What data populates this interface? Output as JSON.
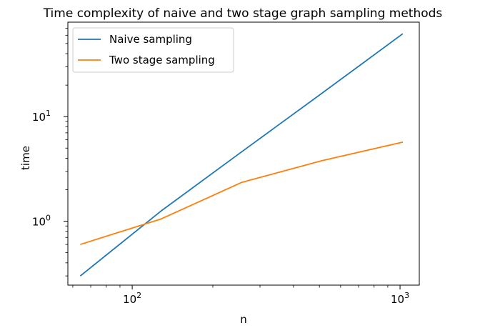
{
  "chart_data": {
    "type": "line",
    "title": "Time complexity of naive and two stage graph sampling methods",
    "xlabel": "n",
    "ylabel": "time",
    "xscale": "log",
    "yscale": "log",
    "xlim": [
      57.5,
      1180
    ],
    "ylim": [
      0.245,
      80
    ],
    "grid": false,
    "legend_position": "top-left",
    "x_ticks": [
      {
        "value": 100,
        "label": "10",
        "exp": "2"
      },
      {
        "value": 1000,
        "label": "10",
        "exp": "3"
      }
    ],
    "y_ticks": [
      {
        "value": 1,
        "label": "10",
        "exp": "0"
      },
      {
        "value": 10,
        "label": "10",
        "exp": "1"
      }
    ],
    "series": [
      {
        "name": "Naive sampling",
        "color": "#1f77b4",
        "x": [
          64,
          128,
          256,
          512,
          1024
        ],
        "y": [
          0.3,
          1.25,
          4.6,
          16.8,
          62.0
        ]
      },
      {
        "name": "Two stage sampling",
        "color": "#ff7f0e",
        "x": [
          64,
          128,
          256,
          512,
          1024
        ],
        "y": [
          0.6,
          1.05,
          2.35,
          3.8,
          5.7
        ]
      }
    ]
  }
}
